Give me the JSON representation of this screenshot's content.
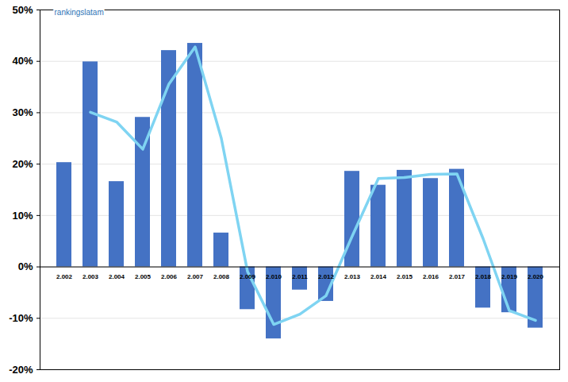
{
  "chart_data": {
    "type": "bar",
    "annotations": [
      "rankingslatam"
    ],
    "categories": [
      "2.002",
      "2.003",
      "2.004",
      "2.005",
      "2.006",
      "2.007",
      "2.008",
      "2.009",
      "2.010",
      "2.011",
      "2.012",
      "2.013",
      "2.014",
      "2.015",
      "2.016",
      "2.017",
      "2.018",
      "2.019",
      "2.020"
    ],
    "series": [
      {
        "type": "bar",
        "color": "#4472c4",
        "values": [
          20.3,
          39.9,
          16.6,
          29.1,
          42.1,
          43.5,
          6.6,
          -8.3,
          -14.0,
          -4.5,
          -6.7,
          18.6,
          15.9,
          18.8,
          17.2,
          19.0,
          -8.0,
          -8.9,
          -11.9
        ]
      },
      {
        "type": "line",
        "color": "#7fd4f2",
        "values": [
          null,
          30.1,
          28.2,
          22.9,
          35.6,
          42.8,
          25.0,
          -0.9,
          -11.2,
          -9.2,
          -5.6,
          6.0,
          17.2,
          17.4,
          18.0,
          18.1,
          5.5,
          -8.5,
          -10.4
        ]
      }
    ],
    "ylim": [
      -20,
      50
    ],
    "yticks": [
      {
        "value": -20,
        "label": "-20%"
      },
      {
        "value": -10,
        "label": "-10%"
      },
      {
        "value": 0,
        "label": "0%"
      },
      {
        "value": 10,
        "label": "10%"
      },
      {
        "value": 20,
        "label": "20%"
      },
      {
        "value": 30,
        "label": "30%"
      },
      {
        "value": 40,
        "label": "40%"
      },
      {
        "value": 50,
        "label": "50%"
      }
    ],
    "grid": true
  }
}
